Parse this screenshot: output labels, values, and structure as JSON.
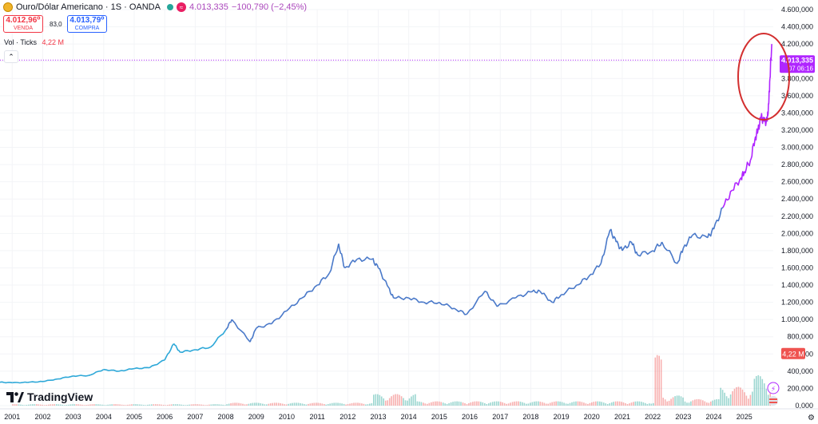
{
  "header": {
    "symbol": "Ouro/Dólar Americano · 1S · OANDA",
    "price": "4.013,335",
    "change": "−100,790 (−2,45%)"
  },
  "sell": {
    "value": "4.012,96⁰",
    "label": "VENDA"
  },
  "spread": "83,0",
  "buy": {
    "value": "4.013,79⁰",
    "label": "COMPRA"
  },
  "volume": {
    "label": "Vol · Ticks",
    "value": "4,22 M"
  },
  "branding": {
    "logo_text": "TradingView"
  },
  "colors": {
    "line_blue": "#4a79c9",
    "line_cyan": "#2ea8d8",
    "line_purple": "#b026ff",
    "vol_up": "#26a69a",
    "vol_down": "#ef5350",
    "annotation": "#d32f2f"
  },
  "chart_data": {
    "type": "line",
    "title": "Ouro/Dólar Americano · 1S · OANDA",
    "xlabel": "",
    "ylabel": "",
    "x_ticks": [
      "2001",
      "2002",
      "2003",
      "2004",
      "2005",
      "2006",
      "2007",
      "2008",
      "2009",
      "2010",
      "2011",
      "2012",
      "2013",
      "2014",
      "2015",
      "2016",
      "2017",
      "2018",
      "2019",
      "2020",
      "2021",
      "2022",
      "2023",
      "2024",
      "2025"
    ],
    "y_ticks": [
      "0,000",
      "200,000",
      "400,000",
      "600,000",
      "800,000",
      "1.000,000",
      "1.200,000",
      "1.400,000",
      "1.600,000",
      "1.800,000",
      "2.000,000",
      "2.200,000",
      "2.400,000",
      "2.600,000",
      "2.800,000",
      "3.000,000",
      "3.200,000",
      "3.400,000",
      "3.600,000",
      "3.800,000",
      "4.000,000",
      "4.200,000",
      "4.400,000",
      "4.600,000"
    ],
    "ylim": [
      0,
      4600
    ],
    "xlim": [
      2000.6,
      2025.95
    ],
    "series": [
      {
        "x": [
          2000.6,
          2001.0,
          2001.5,
          2002.0,
          2002.5,
          2003.0,
          2003.5,
          2004.0,
          2004.5,
          2005.0,
          2005.5,
          2006.0,
          2006.3,
          2006.5,
          2007.0,
          2007.5,
          2008.0,
          2008.2,
          2008.8,
          2009.0,
          2009.5,
          2010.0,
          2010.5,
          2011.0,
          2011.4,
          2011.7,
          2011.9,
          2012.3,
          2012.8,
          2013.0,
          2013.3,
          2013.5,
          2014.0,
          2014.5,
          2015.0,
          2015.5,
          2015.9,
          2016.5,
          2016.9,
          2017.5,
          2018.0,
          2018.3,
          2018.7,
          2019.0,
          2019.5,
          2019.9,
          2020.3,
          2020.6,
          2020.8,
          2021.0,
          2021.3,
          2021.5,
          2022.0,
          2022.3,
          2022.8,
          2023.0,
          2023.3,
          2023.8,
          2024.0,
          2024.3,
          2024.6,
          2024.9,
          2025.0,
          2025.2,
          2025.35,
          2025.45,
          2025.55,
          2025.65,
          2025.75,
          2025.8,
          2025.84,
          2025.9
        ],
        "y": [
          272,
          266,
          270,
          280,
          310,
          345,
          350,
          420,
          400,
          430,
          440,
          530,
          720,
          620,
          650,
          680,
          880,
          1000,
          740,
          900,
          950,
          1100,
          1250,
          1400,
          1540,
          1880,
          1600,
          1700,
          1700,
          1600,
          1390,
          1250,
          1250,
          1200,
          1200,
          1130,
          1060,
          1330,
          1150,
          1250,
          1320,
          1330,
          1200,
          1290,
          1400,
          1500,
          1650,
          2040,
          1900,
          1800,
          1900,
          1750,
          1800,
          1900,
          1650,
          1830,
          1980,
          1950,
          2050,
          2300,
          2500,
          2650,
          2720,
          2850,
          3100,
          3200,
          3350,
          3300,
          3300,
          3500,
          3800,
          4200
        ]
      }
    ],
    "last_price": "4.013,335",
    "last_price_countdown": "07 06:16",
    "volume_value": "4,22 M",
    "volume_ylim": [
      0,
      1500
    ]
  }
}
